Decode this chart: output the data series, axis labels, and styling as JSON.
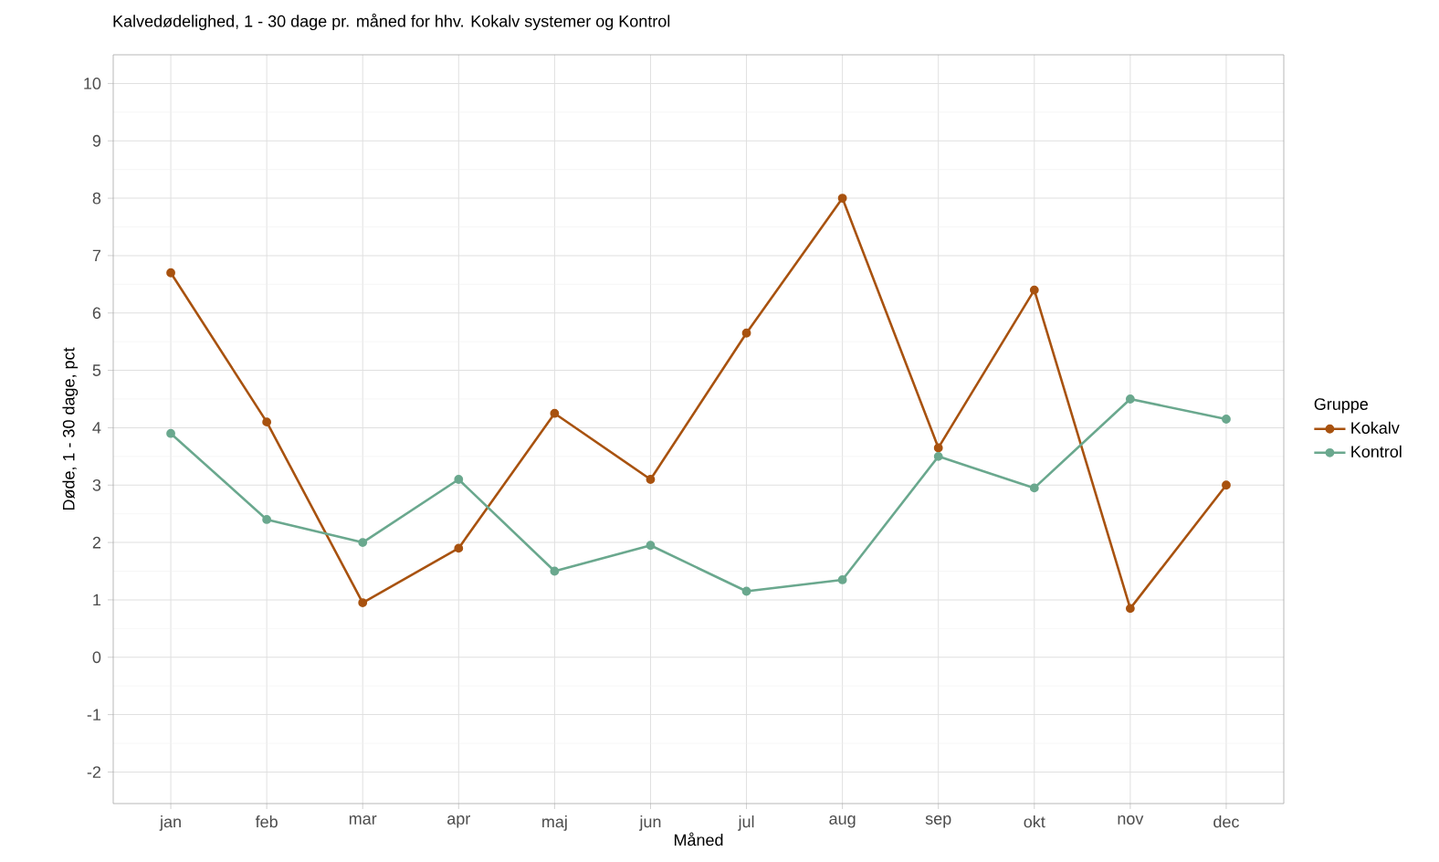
{
  "chart_data": {
    "type": "line",
    "title": "Kalvedødelighed, 1 - 30 dage pr. måned for hhv. Kokalv systemer og Kontrol",
    "xlabel": "Måned",
    "ylabel": "Døde, 1 - 30 dage, pct",
    "legend_title": "Gruppe",
    "categories": [
      "jan",
      "feb",
      "mar",
      "apr",
      "maj",
      "jun",
      "jul",
      "aug",
      "sep",
      "okt",
      "nov",
      "dec"
    ],
    "series": [
      {
        "name": "Kokalv",
        "color": "#a8520f",
        "values": [
          6.7,
          4.1,
          0.95,
          1.9,
          4.25,
          3.1,
          5.65,
          8.0,
          3.65,
          6.4,
          0.85,
          3.0
        ]
      },
      {
        "name": "Kontrol",
        "color": "#6aa88e",
        "values": [
          3.9,
          2.4,
          2.0,
          3.1,
          1.5,
          1.95,
          1.15,
          1.35,
          3.5,
          2.95,
          4.5,
          4.15
        ]
      }
    ],
    "ylim": [
      -2.55,
      10.5
    ],
    "yticks": [
      -2,
      -1,
      0,
      1,
      2,
      3,
      4,
      5,
      6,
      7,
      8,
      9,
      10
    ],
    "grid": true,
    "legend": "right",
    "marker": "circle",
    "line_style": "solid"
  }
}
